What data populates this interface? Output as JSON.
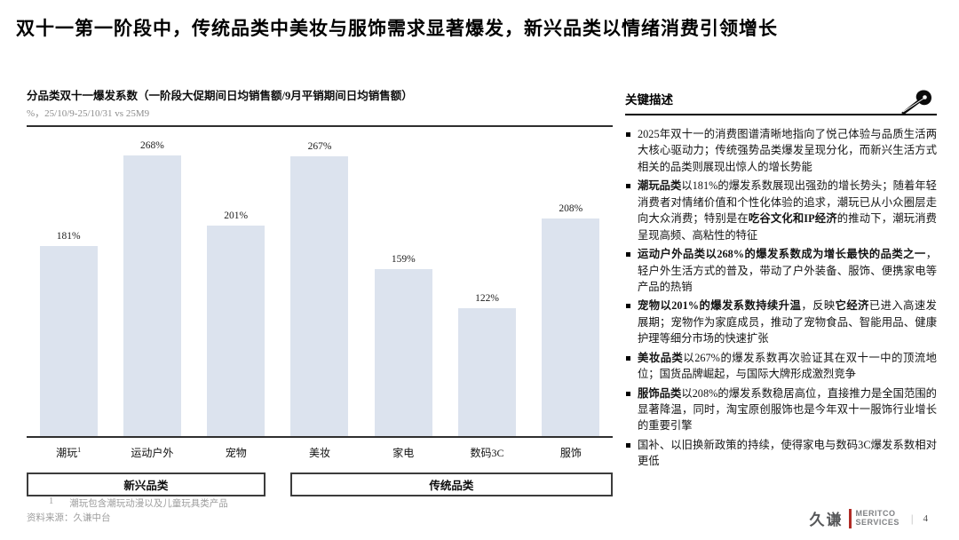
{
  "slide": {
    "title": "双十一第一阶段中，传统品类中美妆与服饰需求显著爆发，新兴品类以情绪消费引领增长",
    "page_number": "4"
  },
  "chart": {
    "heading": "分品类双十一爆发系数（一阶段大促期间日均销售额/9月平销期间日均销售额）",
    "subtitle": "%，25/10/9-25/10/31 vs 25M9"
  },
  "chart_data": {
    "type": "bar",
    "title": "分品类双十一爆发系数（一阶段大促期间日均销售额/9月平销期间日均销售额）",
    "unit": "%",
    "categories": [
      "潮玩",
      "运动户外",
      "宠物",
      "美妆",
      "家电",
      "数码3C",
      "服饰"
    ],
    "category_footnote_refs": [
      "1",
      "",
      "",
      "",
      "",
      "",
      ""
    ],
    "values": [
      181,
      268,
      201,
      267,
      159,
      122,
      208
    ],
    "value_labels": [
      "181%",
      "268%",
      "201%",
      "267%",
      "159%",
      "122%",
      "208%"
    ],
    "groups": [
      {
        "label": "新兴品类",
        "span": 3
      },
      {
        "label": "传统品类",
        "span": 4
      }
    ],
    "ylim": [
      0,
      300
    ],
    "grid": false,
    "legend": false,
    "bar_color": "#dce3ee",
    "axis_color": "#2f2f2f"
  },
  "key_points": {
    "header": "关键描述",
    "bullets": [
      [
        {
          "t": "2025年双十一的消费图谱清晰地指向了悦己体验与品质生活两大核心驱动力；传统强势品类爆发呈现分化，而新兴生活方式相关的品类则展现出惊人的增长势能",
          "b": false
        }
      ],
      [
        {
          "t": "潮玩品类",
          "b": true
        },
        {
          "t": "以181%的爆发系数展现出强劲的增长势头；随着年轻消费者对情绪价值和个性化体验的追求，潮玩已从小众圈层走向大众消费；特别是在",
          "b": false
        },
        {
          "t": "吃谷文化和IP经济",
          "b": true
        },
        {
          "t": "的推动下，潮玩消费呈现高频、高粘性的特征",
          "b": false
        }
      ],
      [
        {
          "t": "运动户外品类以268%的爆发系数成为增长最快的品类之一",
          "b": true
        },
        {
          "t": "，轻户外生活方式的普及，带动了户外装备、服饰、便携家电等产品的热销",
          "b": false
        }
      ],
      [
        {
          "t": "宠物以201%的爆发系数持续升温",
          "b": true
        },
        {
          "t": "，反映",
          "b": false
        },
        {
          "t": "它经济",
          "b": true
        },
        {
          "t": "已进入高速发展期；宠物作为家庭成员，推动了宠物食品、智能用品、健康护理等细分市场的快速扩张",
          "b": false
        }
      ],
      [
        {
          "t": "美妆品类",
          "b": true
        },
        {
          "t": "以267%的爆发系数再次验证其在双十一中的顶流地位；国货品牌崛起，与国际大牌形成激烈竞争",
          "b": false
        }
      ],
      [
        {
          "t": "服饰品类",
          "b": true
        },
        {
          "t": "以208%的爆发系数稳居高位，直接推力是全国范围的显著降温，同时，淘宝原创服饰也是今年双十一服饰行业增长的重要引擎",
          "b": false
        }
      ],
      [
        {
          "t": "国补、以旧换新政策的持续，使得家电与数码3C爆发系数相对更低",
          "b": false
        }
      ]
    ]
  },
  "footer": {
    "footnote_index": "1",
    "footnote": "潮玩包含潮玩动漫以及儿童玩具类产品",
    "source": "资料来源：久谦中台",
    "logo_cn": "久谦",
    "logo_en_line1": "MERITCO",
    "logo_en_line2": "SERVICES",
    "logo_divider": "|"
  },
  "colors": {
    "bar_fill": "#dce3ee",
    "axis": "#2f2f2f",
    "subtitle_gray": "#8c8c8c",
    "footnote_gray": "#9e9e9e",
    "logo_red": "#b02c26",
    "logo_gray": "#808285"
  }
}
